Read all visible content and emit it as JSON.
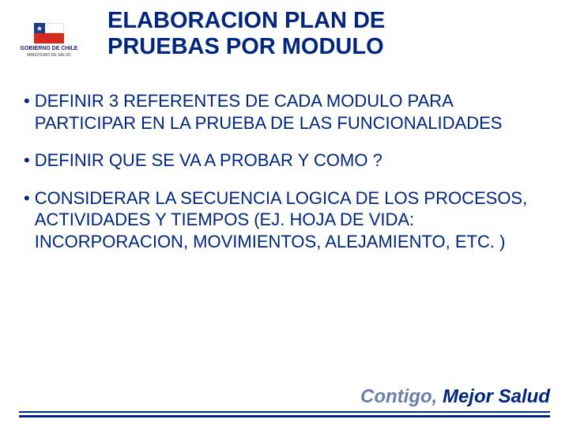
{
  "logo": {
    "gov_line1": "GOBIERNO DE CHILE",
    "gov_line2": "MINISTERIO DE SALUD"
  },
  "title": {
    "line1": "ELABORACION PLAN DE",
    "line2": "PRUEBAS POR MODULO"
  },
  "bullets": [
    "DEFINIR 3 REFERENTES DE CADA MODULO PARA PARTICIPAR EN LA PRUEBA DE LAS FUNCIONALIDADES",
    "DEFINIR QUE SE VA A PROBAR Y COMO ?",
    "CONSIDERAR LA SECUENCIA LOGICA DE LOS PROCESOS, ACTIVIDADES Y TIEMPOS (EJ. HOJA DE VIDA: INCORPORACION, MOVIMIENTOS, ALEJAMIENTO, ETC. )"
  ],
  "footer": {
    "part1": "Contigo, ",
    "part2": "Mejor Salud"
  },
  "colors": {
    "title_color": "#00267f",
    "text_color": "#00267f",
    "footer_light": "#6b7fa8",
    "footer_dark": "#00267f",
    "background": "#ffffff"
  },
  "typography": {
    "title_fontsize": 29,
    "body_fontsize": 22,
    "footer_fontsize": 24
  }
}
